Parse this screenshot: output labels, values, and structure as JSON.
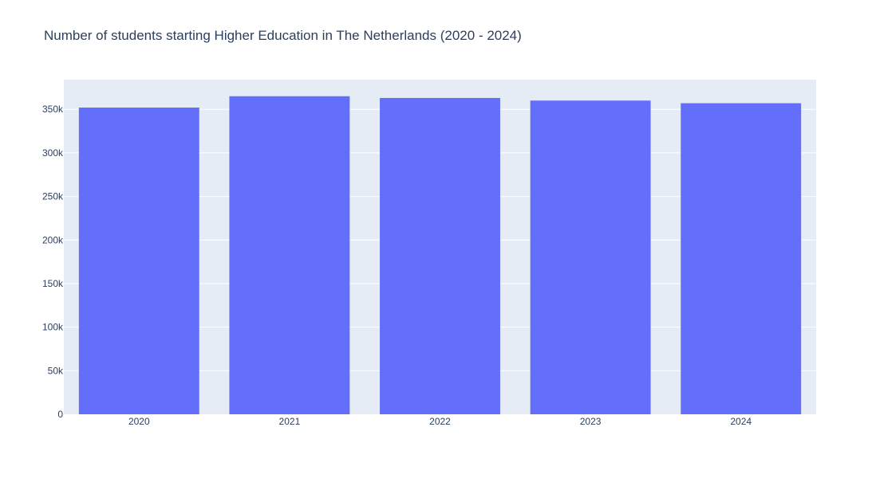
{
  "colors": {
    "plot_bg": "#E5ECF6",
    "grid": "#ffffff",
    "bar": "#636EFA",
    "text": "#2a3f5f"
  },
  "chart_data": {
    "type": "bar",
    "title": "Number of students starting Higher Education in The Netherlands (2020 - 2024)",
    "xlabel": "",
    "ylabel": "",
    "categories": [
      "2020",
      "2021",
      "2022",
      "2023",
      "2024"
    ],
    "values": [
      352000,
      365000,
      363000,
      360000,
      357000
    ],
    "ylim": [
      0,
      384000
    ],
    "yticks": [
      {
        "value": 0,
        "label": "0"
      },
      {
        "value": 50000,
        "label": "50k"
      },
      {
        "value": 100000,
        "label": "100k"
      },
      {
        "value": 150000,
        "label": "150k"
      },
      {
        "value": 200000,
        "label": "200k"
      },
      {
        "value": 250000,
        "label": "250k"
      },
      {
        "value": 300000,
        "label": "300k"
      },
      {
        "value": 350000,
        "label": "350k"
      }
    ],
    "grid": true,
    "legend": false
  }
}
